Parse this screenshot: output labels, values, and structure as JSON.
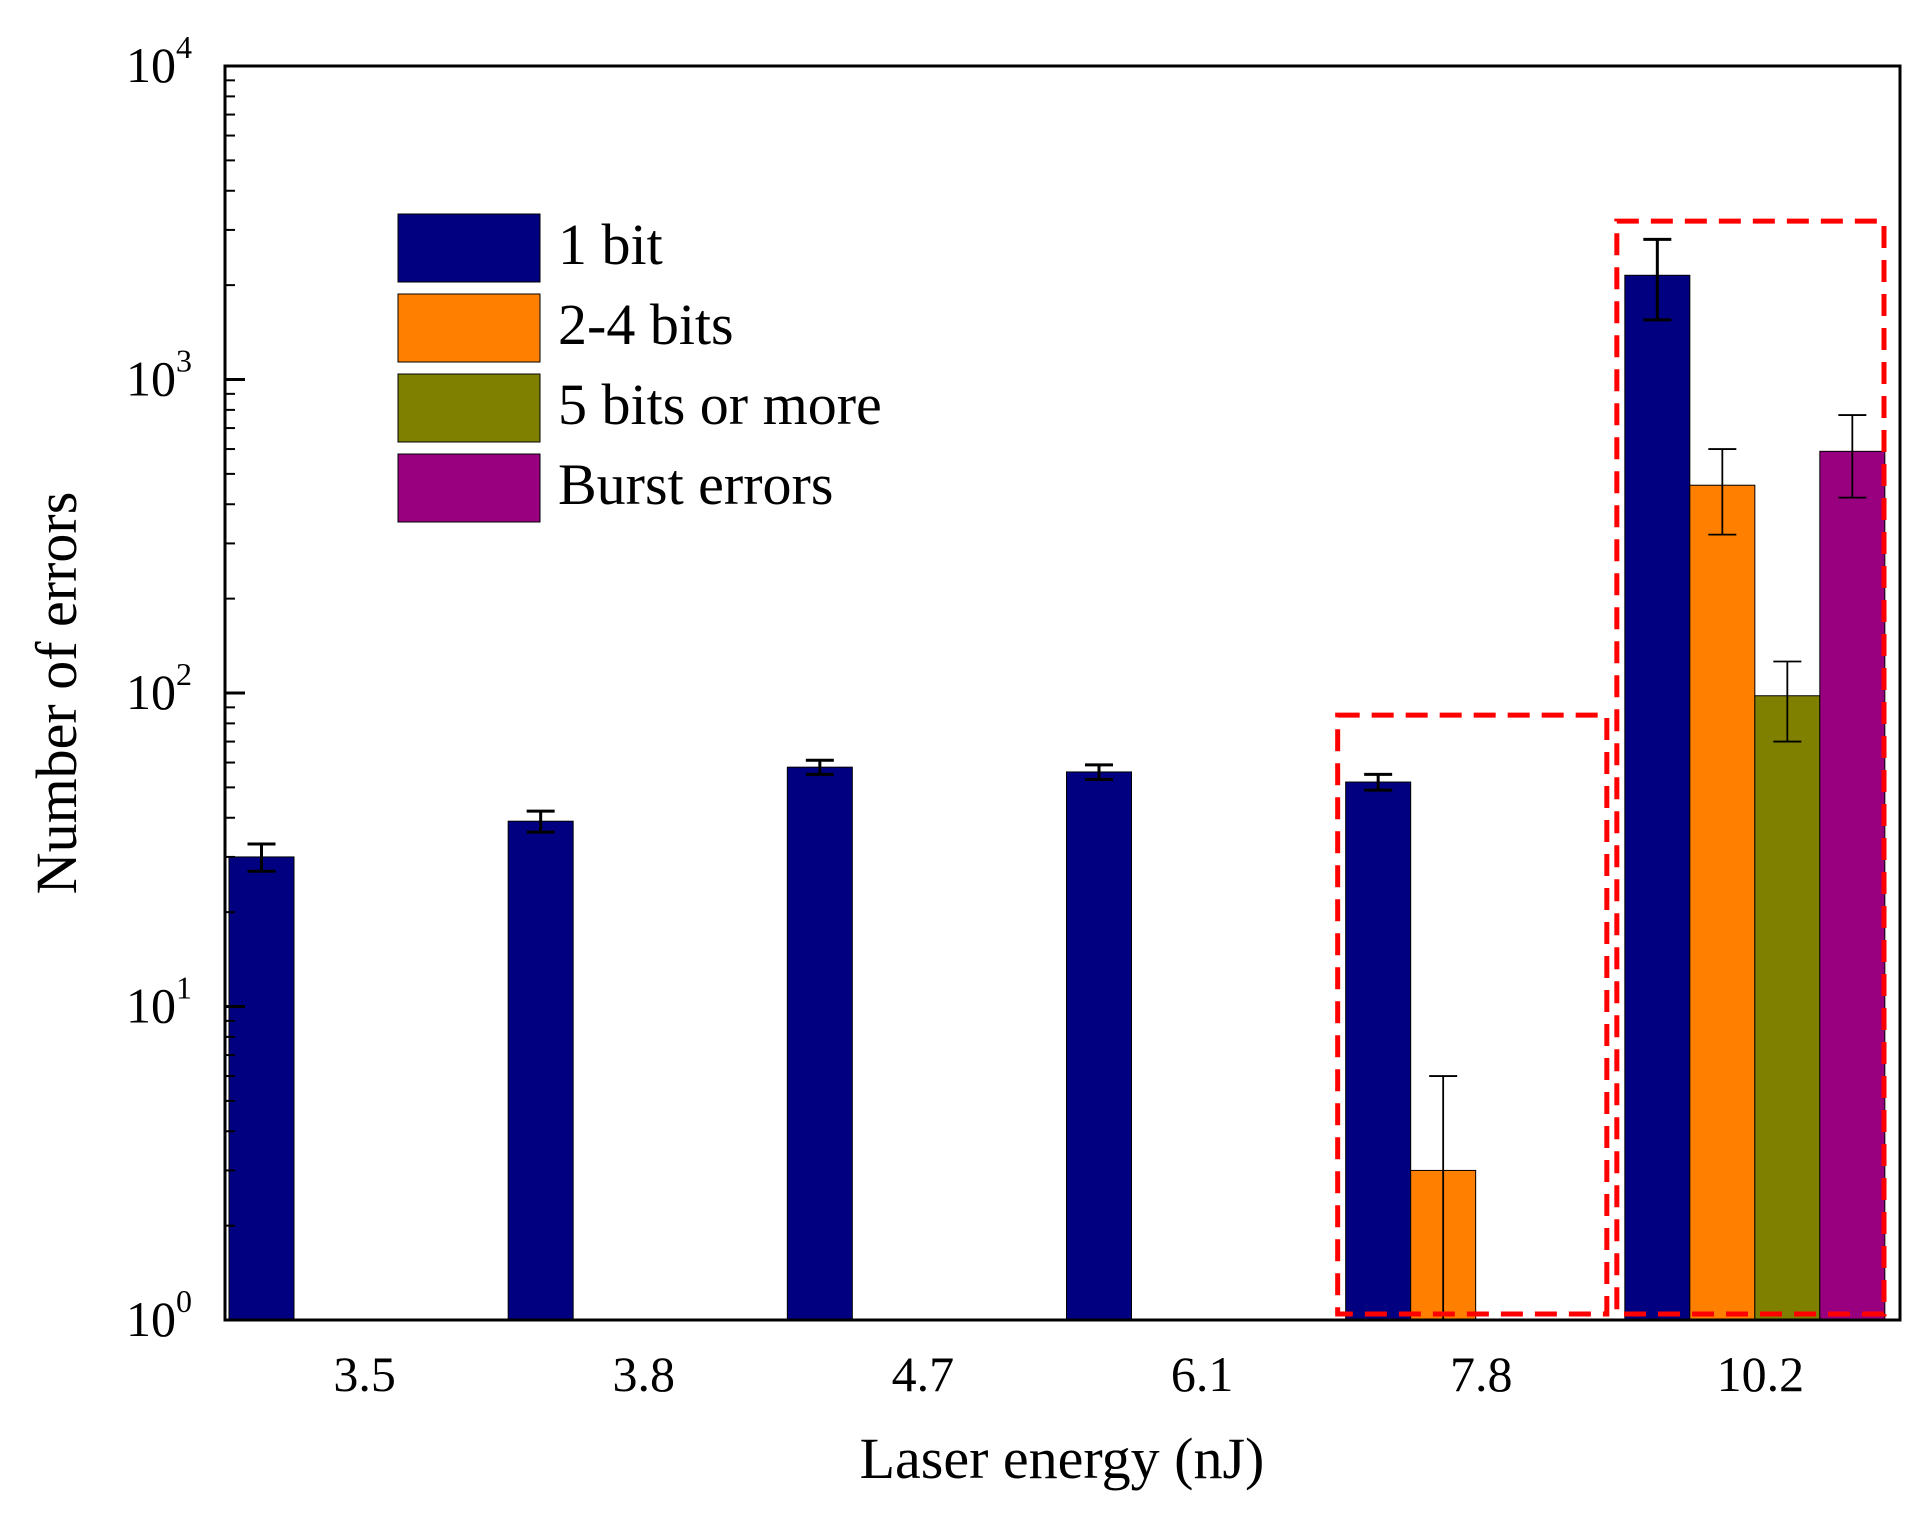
{
  "chart_data": {
    "type": "bar",
    "scale": "log",
    "xlabel": "Laser energy (nJ)",
    "ylabel": "Number of errors",
    "ylim": [
      1,
      10000
    ],
    "y_ticks": [
      {
        "base": "10",
        "exp": "0",
        "value": 1
      },
      {
        "base": "10",
        "exp": "1",
        "value": 10
      },
      {
        "base": "10",
        "exp": "2",
        "value": 100
      },
      {
        "base": "10",
        "exp": "3",
        "value": 1000
      },
      {
        "base": "10",
        "exp": "4",
        "value": 10000
      }
    ],
    "categories": [
      "3.5",
      "3.8",
      "4.7",
      "6.1",
      "7.8",
      "10.2"
    ],
    "series": [
      {
        "name": "1 bit",
        "color": "#000080",
        "values": [
          30,
          39,
          58,
          56,
          52,
          2150
        ],
        "err_low": [
          27,
          36,
          55,
          53,
          49,
          1550
        ],
        "err_high": [
          33,
          42,
          61,
          59,
          55,
          2800
        ]
      },
      {
        "name": "2-4 bits",
        "color": "#ff8000",
        "values": [
          null,
          null,
          null,
          null,
          3,
          460
        ],
        "err_low": [
          null,
          null,
          null,
          null,
          1,
          320
        ],
        "err_high": [
          null,
          null,
          null,
          null,
          6,
          600
        ]
      },
      {
        "name": "5 bits or more",
        "color": "#808000",
        "values": [
          null,
          null,
          null,
          null,
          null,
          98
        ],
        "err_low": [
          null,
          null,
          null,
          null,
          null,
          70
        ],
        "err_high": [
          null,
          null,
          null,
          null,
          null,
          126
        ]
      },
      {
        "name": "Burst errors",
        "color": "#990080",
        "values": [
          null,
          null,
          null,
          null,
          null,
          590
        ],
        "err_low": [
          null,
          null,
          null,
          null,
          null,
          420
        ],
        "err_high": [
          null,
          null,
          null,
          null,
          null,
          770
        ]
      }
    ],
    "highlight_color": "#ff0000",
    "highlight_groups": [
      {
        "category": "7.8",
        "ymax": 85
      },
      {
        "category": "10.2",
        "ymax": 3200
      }
    ],
    "legend": "upper-left"
  }
}
